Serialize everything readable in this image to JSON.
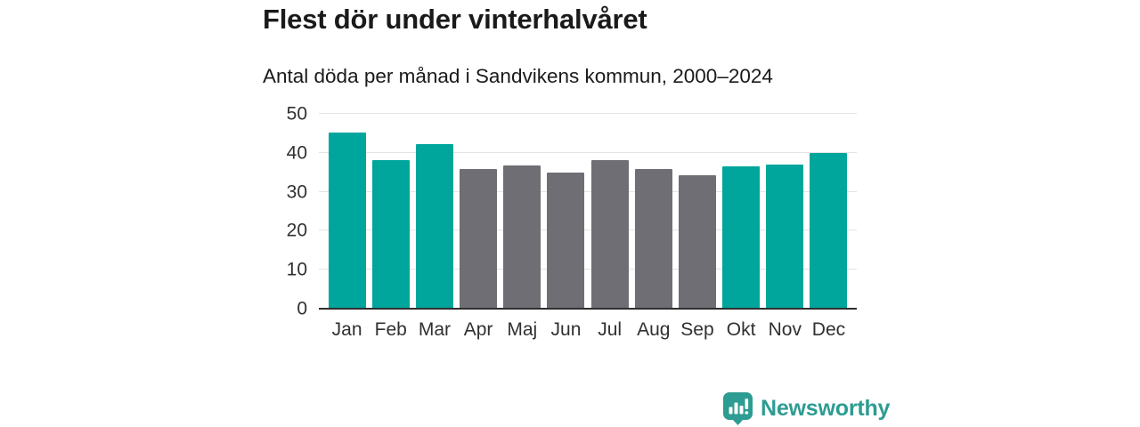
{
  "header": {
    "title": "Flest dör under vinterhalvåret",
    "subtitle": "Antal döda per månad i Sandvikens kommun, 2000–2024"
  },
  "chart_data": {
    "type": "bar",
    "title": "Flest dör under vinterhalvåret",
    "subtitle": "Antal döda per månad i Sandvikens kommun, 2000–2024",
    "categories": [
      "Jan",
      "Feb",
      "Mar",
      "Apr",
      "Maj",
      "Jun",
      "Jul",
      "Aug",
      "Sep",
      "Okt",
      "Nov",
      "Dec"
    ],
    "values": [
      45.3,
      38.2,
      42.3,
      35.8,
      36.8,
      34.9,
      38.1,
      35.8,
      34.3,
      36.6,
      37.1,
      40.0
    ],
    "winter_months": [
      true,
      true,
      true,
      false,
      false,
      false,
      false,
      false,
      false,
      true,
      true,
      true
    ],
    "xlabel": "",
    "ylabel": "",
    "ylim": [
      0,
      50
    ],
    "yticks": [
      0,
      10,
      20,
      30,
      40,
      50
    ],
    "grid": true,
    "legend_position": "none",
    "colors": {
      "winter_bar": "#00A69B",
      "summer_bar": "#6E6E74",
      "gridline": "#E3E3E3",
      "axis_line": "#2E2E2E",
      "tick_label": "#303030"
    }
  },
  "footer": {
    "brand": "Newsworthy",
    "brand_color": "#2D9C92",
    "logo_icon": "bar-chart-speech-bubble-icon"
  }
}
